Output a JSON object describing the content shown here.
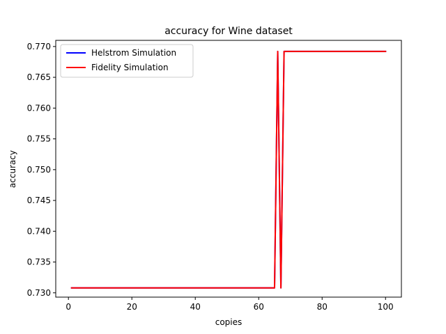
{
  "chart_data": {
    "type": "line",
    "title": "accuracy for Wine dataset",
    "xlabel": "copies",
    "ylabel": "accuracy",
    "xlim": [
      -4,
      105
    ],
    "ylim": [
      0.7293,
      0.771
    ],
    "xticks": [
      0,
      20,
      40,
      60,
      80,
      100
    ],
    "xtick_labels": [
      "0",
      "20",
      "40",
      "60",
      "80",
      "100"
    ],
    "yticks": [
      0.73,
      0.735,
      0.74,
      0.745,
      0.75,
      0.755,
      0.76,
      0.765,
      0.77
    ],
    "ytick_labels": [
      "0.730",
      "0.735",
      "0.740",
      "0.745",
      "0.750",
      "0.755",
      "0.760",
      "0.765",
      "0.770"
    ],
    "grid": false,
    "legend_position": "top-left",
    "series": [
      {
        "name": "Helstrom Simulation",
        "color": "#0000ff",
        "x": [
          1,
          65,
          66,
          67,
          68,
          100
        ],
        "y": [
          0.7308,
          0.7308,
          0.7692,
          0.7308,
          0.7692,
          0.7692
        ]
      },
      {
        "name": "Fidelity Simulation",
        "color": "#ff0000",
        "x": [
          1,
          65,
          66,
          67,
          68,
          100
        ],
        "y": [
          0.7308,
          0.7308,
          0.7692,
          0.7308,
          0.7692,
          0.7692
        ]
      }
    ]
  }
}
